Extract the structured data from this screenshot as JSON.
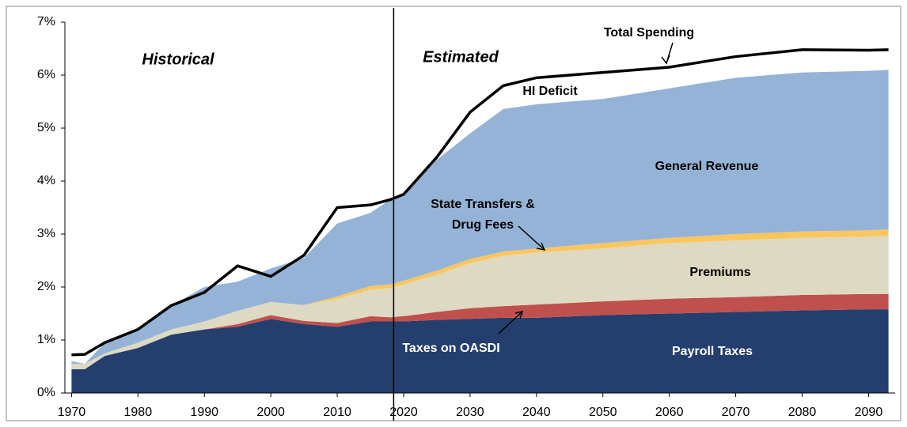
{
  "chart_data": {
    "type": "stacked_area",
    "x": [
      1970,
      1972,
      1975,
      1980,
      1985,
      1990,
      1995,
      2000,
      2005,
      2010,
      2015,
      2018,
      2020,
      2025,
      2030,
      2035,
      2040,
      2050,
      2060,
      2070,
      2080,
      2090,
      2093
    ],
    "series": [
      {
        "name": "Payroll Taxes",
        "color": "#243f6e",
        "values": [
          0.45,
          0.45,
          0.7,
          0.85,
          1.1,
          1.2,
          1.25,
          1.4,
          1.3,
          1.25,
          1.35,
          1.35,
          1.35,
          1.38,
          1.4,
          1.42,
          1.42,
          1.47,
          1.5,
          1.53,
          1.56,
          1.58,
          1.58
        ]
      },
      {
        "name": "Taxes on OASDI",
        "color": "#c0504d",
        "values": [
          0,
          0,
          0,
          0,
          0,
          0,
          0.05,
          0.07,
          0.06,
          0.07,
          0.1,
          0.08,
          0.1,
          0.15,
          0.2,
          0.22,
          0.25,
          0.26,
          0.28,
          0.28,
          0.29,
          0.29,
          0.29
        ]
      },
      {
        "name": "Premiums",
        "color": "#ddd9c3",
        "values": [
          0.1,
          0.1,
          0.05,
          0.1,
          0.1,
          0.15,
          0.25,
          0.25,
          0.3,
          0.45,
          0.5,
          0.55,
          0.6,
          0.7,
          0.85,
          0.95,
          0.98,
          1.0,
          1.05,
          1.07,
          1.08,
          1.08,
          1.1
        ]
      },
      {
        "name": "State Transfers & Drug Fees",
        "color": "#fcc65e",
        "values": [
          0,
          0,
          0,
          0,
          0,
          0,
          0,
          0,
          0,
          0.05,
          0.07,
          0.07,
          0.07,
          0.08,
          0.08,
          0.08,
          0.08,
          0.1,
          0.1,
          0.12,
          0.12,
          0.12,
          0.12
        ]
      },
      {
        "name": "General Revenue",
        "color": "#95b3d7",
        "values": [
          0.05,
          0,
          0.2,
          0.25,
          0.45,
          0.65,
          0.55,
          0.63,
          0.89,
          1.38,
          1.38,
          1.6,
          1.63,
          2.09,
          2.37,
          2.69,
          2.72,
          2.72,
          2.82,
          2.95,
          3.0,
          3.01,
          3.01
        ]
      },
      {
        "name": "Total Spending",
        "color": "#000000",
        "type": "line",
        "values": [
          0.72,
          0.73,
          0.95,
          1.2,
          1.65,
          1.9,
          2.4,
          2.2,
          2.6,
          3.5,
          3.55,
          3.65,
          3.75,
          4.45,
          5.3,
          5.8,
          5.95,
          6.05,
          6.15,
          6.35,
          6.48,
          6.47,
          6.48
        ]
      }
    ],
    "annotations": [
      "Historical",
      "Estimated",
      "HI Deficit"
    ],
    "xlim": [
      1969,
      2094
    ],
    "ylim": [
      0,
      7
    ],
    "xticks": [
      1970,
      1980,
      1990,
      2000,
      2010,
      2020,
      2030,
      2040,
      2050,
      2060,
      2070,
      2080,
      2090
    ],
    "yticks": [
      {
        "value": 0,
        "label": "0%"
      },
      {
        "value": 1,
        "label": "1%"
      },
      {
        "value": 2,
        "label": "2%"
      },
      {
        "value": 3,
        "label": "3%"
      },
      {
        "value": 4,
        "label": "4%"
      },
      {
        "value": 5,
        "label": "5%"
      },
      {
        "value": 6,
        "label": "6%"
      },
      {
        "value": 7,
        "label": "7%"
      }
    ],
    "divider": 2018.5
  }
}
